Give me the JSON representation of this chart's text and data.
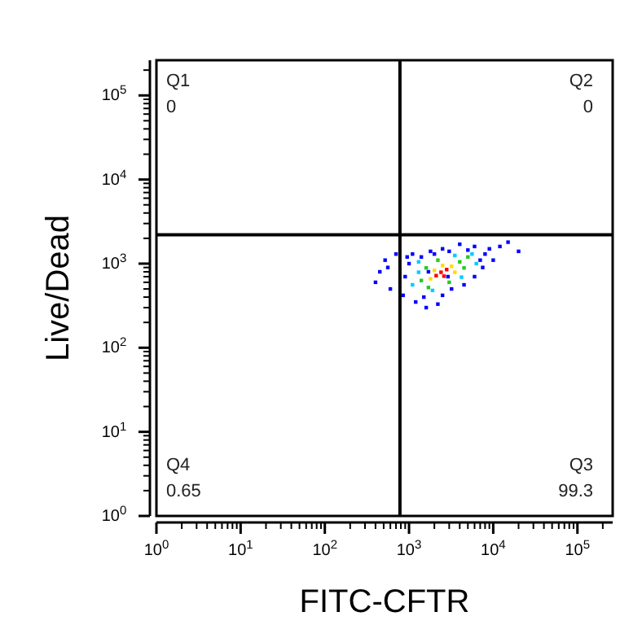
{
  "chart_data": {
    "type": "scatter",
    "xlabel": "FITC-CFTR",
    "ylabel": "Live/Dead",
    "log": "xy",
    "marker": "square",
    "xlim": [
      1,
      262144
    ],
    "ylim": [
      1,
      262144
    ],
    "xticks": [
      {
        "value": 1,
        "label": "10$^{0}$"
      },
      {
        "value": 10,
        "label": "10$^{1}$"
      },
      {
        "value": 100,
        "label": "10$^{2}$"
      },
      {
        "value": 1000,
        "label": "10$^{3}$"
      },
      {
        "value": 10000,
        "label": "10$^{4}$"
      },
      {
        "value": 100000,
        "label": "10$^{5}$"
      }
    ],
    "yticks": [
      {
        "value": 1,
        "label": "10$^{0}$"
      },
      {
        "value": 10,
        "label": "10$^{1}$"
      },
      {
        "value": 100,
        "label": "10$^{2}$"
      },
      {
        "value": 1000,
        "label": "10$^{3}$"
      },
      {
        "value": 10000,
        "label": "10$^{4}$"
      },
      {
        "value": 100000,
        "label": "10$^{5}$"
      }
    ],
    "ref_lines": [
      {
        "axis": "x",
        "value": 780,
        "color": "#000000"
      },
      {
        "axis": "y",
        "value": 2200,
        "color": "#000000"
      }
    ],
    "annotations": [
      "Q1",
      "0",
      "Q2",
      "0",
      "Q3",
      "99.3",
      "Q4",
      "0.65"
    ],
    "series": [
      {
        "color": "#0000ff",
        "x": [
          1000,
          900,
          850,
          1200,
          1500,
          2500,
          3200,
          4500,
          6000,
          7000,
          8000,
          9000,
          12000,
          15000,
          20000,
          6000,
          4000,
          2500,
          1800,
          1100,
          950,
          1400,
          2000,
          3000,
          5000,
          7500,
          10000,
          2200,
          1600,
          560,
          450,
          400,
          600,
          520,
          700,
          2900,
          1700
        ],
        "values": [
          1000,
          700,
          420,
          350,
          400,
          420,
          500,
          560,
          700,
          1100,
          1300,
          1500,
          1600,
          1800,
          1400,
          1600,
          1700,
          1500,
          1400,
          1300,
          1200,
          1200,
          1300,
          1400,
          1450,
          900,
          1100,
          330,
          300,
          900,
          800,
          600,
          500,
          1100,
          1300,
          700,
          800
        ]
      },
      {
        "color": "#00ccff",
        "x": [
          1300,
          5600,
          1100,
          3500,
          1900,
          4200,
          6300,
          1300
        ],
        "values": [
          790,
          1300,
          560,
          1250,
          480,
          690,
          1000,
          1050
        ]
      },
      {
        "color": "#22cc22",
        "x": [
          1600,
          4000,
          1400,
          4500,
          2200,
          3000,
          1700,
          5000
        ],
        "values": [
          890,
          1050,
          630,
          890,
          1100,
          600,
          520,
          1200
        ]
      },
      {
        "color": "#ffdd00",
        "x": [
          2000,
          3200,
          1800,
          3500,
          2500
        ],
        "values": [
          830,
          930,
          660,
          790,
          950
        ]
      },
      {
        "color": "#ff0000",
        "x": [
          2400,
          2800,
          2100,
          2600
        ],
        "values": [
          790,
          850,
          720,
          710
        ]
      }
    ]
  }
}
